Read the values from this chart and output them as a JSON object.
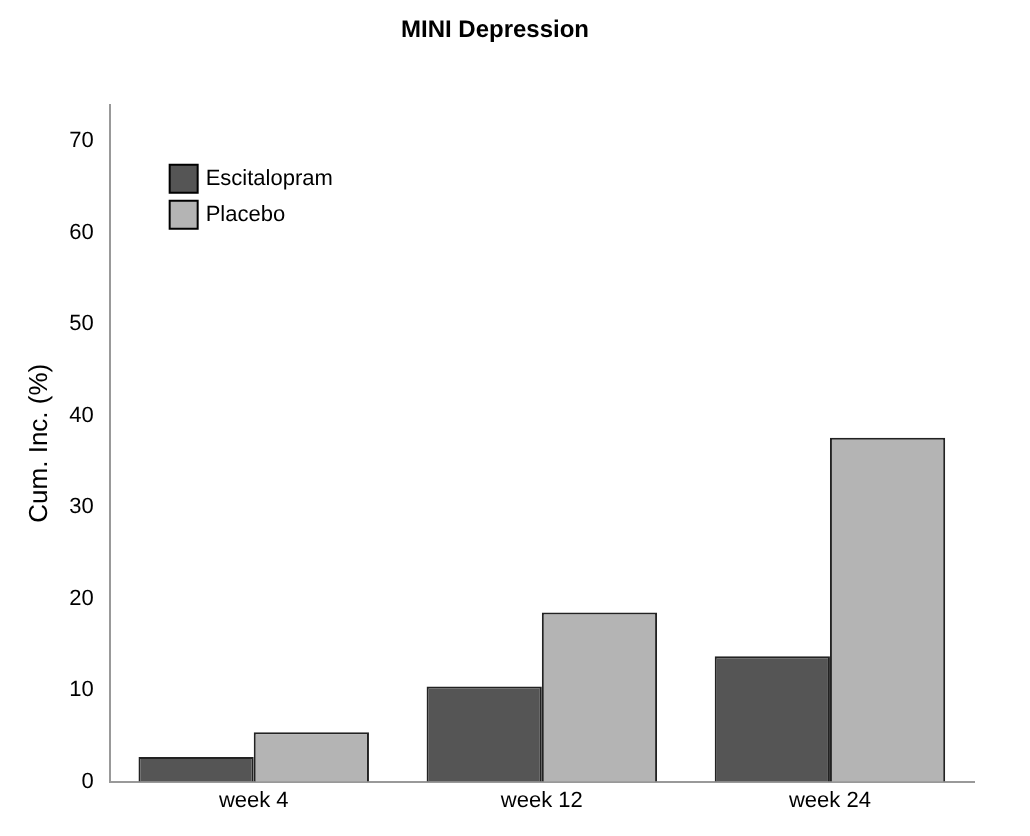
{
  "chart_data": {
    "type": "bar",
    "title": "MINI Depression",
    "ylabel": "Cum. Inc. (%)",
    "categories": [
      "week 4",
      "week 12",
      "week 24"
    ],
    "series": [
      {
        "name": "Escitalopram",
        "color": "#555555",
        "values": [
          2.7,
          10.4,
          13.7
        ]
      },
      {
        "name": "Placebo",
        "color": "#b4b4b4",
        "values": [
          5.4,
          18.5,
          37.6
        ]
      }
    ],
    "ylim": [
      0,
      74
    ],
    "yticks": [
      0,
      10,
      20,
      30,
      40,
      50,
      60,
      70
    ],
    "grid": false,
    "legend": "top left"
  }
}
